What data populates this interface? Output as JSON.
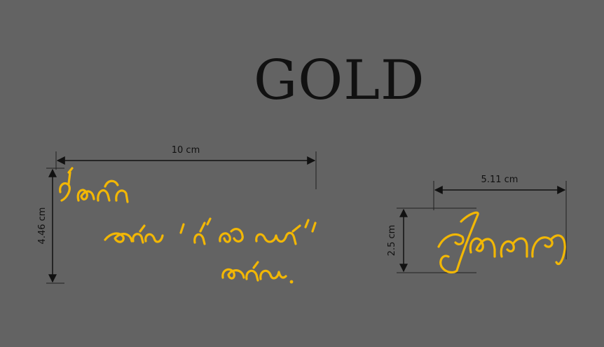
{
  "title": "GOLD",
  "colors": {
    "background": "#636363",
    "ink": "#111111",
    "engraving": "#f2b705"
  },
  "dimensions": {
    "left_width": "10 cm",
    "left_height": "4.46 cm",
    "right_width": "5.11 cm",
    "right_height": "2.5 cm"
  },
  "artwork": {
    "left": "handwritten-message-engraving",
    "right": "handwritten-signature-engraving"
  }
}
